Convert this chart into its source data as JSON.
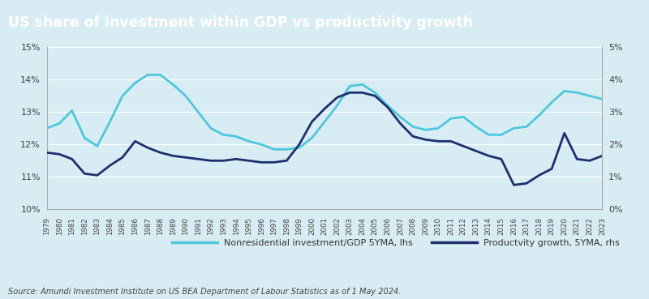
{
  "title": "US share of investment within GDP vs productivity growth",
  "title_bg_color": "#4d9fa0",
  "title_text_color": "#ffffff",
  "plot_bg_color": "#d8ecf3",
  "fig_bg_color": "#d8ecf3",
  "source_text": "Source: Amundi Investment Institute on US BEA Department of Labour Statistics as of 1 May 2024.",
  "legend1": "Nonresidential investment/GDP 5YMA, lhs",
  "legend2": "Productvity growth, 5YMA, rhs",
  "line1_color": "#4dc8dc",
  "line2_color": "#1c2f6e",
  "ylim_left": [
    10,
    15
  ],
  "ylim_right": [
    0,
    5
  ],
  "yticks_left": [
    10,
    11,
    12,
    13,
    14,
    15
  ],
  "yticks_right": [
    0,
    1,
    2,
    3,
    4,
    5
  ],
  "years": [
    1979,
    1980,
    1981,
    1982,
    1983,
    1984,
    1985,
    1986,
    1987,
    1988,
    1989,
    1990,
    1991,
    1992,
    1993,
    1994,
    1995,
    1996,
    1997,
    1998,
    1999,
    2000,
    2001,
    2002,
    2003,
    2004,
    2005,
    2006,
    2007,
    2008,
    2009,
    2010,
    2011,
    2012,
    2013,
    2014,
    2015,
    2016,
    2017,
    2018,
    2019,
    2020,
    2021,
    2022,
    2023
  ],
  "invest_gdp": [
    12.5,
    12.65,
    13.05,
    12.2,
    11.95,
    12.7,
    13.5,
    13.9,
    14.15,
    14.15,
    13.85,
    13.5,
    13.0,
    12.5,
    12.3,
    12.25,
    12.1,
    12.0,
    11.85,
    11.85,
    11.9,
    12.2,
    12.7,
    13.2,
    13.8,
    13.85,
    13.6,
    13.2,
    12.85,
    12.55,
    12.45,
    12.5,
    12.8,
    12.85,
    12.55,
    12.3,
    12.3,
    12.5,
    12.55,
    12.9,
    13.3,
    13.65,
    13.6,
    13.5,
    13.4
  ],
  "productivity": [
    1.75,
    1.7,
    1.55,
    1.1,
    1.05,
    1.35,
    1.6,
    2.1,
    1.9,
    1.75,
    1.65,
    1.6,
    1.55,
    1.5,
    1.5,
    1.55,
    1.5,
    1.45,
    1.45,
    1.5,
    2.0,
    2.7,
    3.1,
    3.45,
    3.6,
    3.6,
    3.5,
    3.15,
    2.65,
    2.25,
    2.15,
    2.1,
    2.1,
    1.95,
    1.8,
    1.65,
    1.55,
    0.75,
    0.8,
    1.05,
    1.25,
    2.35,
    1.55,
    1.5,
    1.65
  ]
}
